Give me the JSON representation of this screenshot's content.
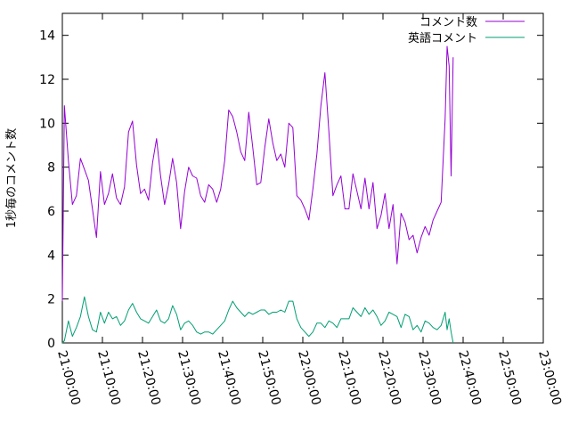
{
  "chart_data": {
    "type": "line",
    "title": "",
    "xlabel": "",
    "ylabel": "1秒毎のコメント数",
    "xlim": [
      "21:00:00",
      "23:00:00"
    ],
    "ylim": [
      0,
      15
    ],
    "y_ticks": [
      "0",
      "2",
      "4",
      "6",
      "8",
      "10",
      "12",
      "14"
    ],
    "x_ticks": [
      "21:00:00",
      "21:10:00",
      "21:20:00",
      "21:30:00",
      "21:40:00",
      "21:50:00",
      "22:00:00",
      "22:10:00",
      "22:20:00",
      "22:30:00",
      "22:40:00",
      "22:50:00",
      "23:00:00"
    ],
    "grid": false,
    "legend_position": "top-right",
    "series": [
      {
        "name": "コメント数",
        "color": "#9400d3",
        "points": [
          [
            "21:00:00",
            1.9
          ],
          [
            "21:00:30",
            10.8
          ],
          [
            "21:01:30",
            8.3
          ],
          [
            "21:02:30",
            6.3
          ],
          [
            "21:03:30",
            6.7
          ],
          [
            "21:04:30",
            8.4
          ],
          [
            "21:05:30",
            7.9
          ],
          [
            "21:06:30",
            7.4
          ],
          [
            "21:07:30",
            6.1
          ],
          [
            "21:08:30",
            4.8
          ],
          [
            "21:09:30",
            7.8
          ],
          [
            "21:10:30",
            6.3
          ],
          [
            "21:11:30",
            6.8
          ],
          [
            "21:12:30",
            7.7
          ],
          [
            "21:13:30",
            6.6
          ],
          [
            "21:14:30",
            6.3
          ],
          [
            "21:15:30",
            7.1
          ],
          [
            "21:16:30",
            9.6
          ],
          [
            "21:17:30",
            10.1
          ],
          [
            "21:18:30",
            8.1
          ],
          [
            "21:19:30",
            6.8
          ],
          [
            "21:20:30",
            7.0
          ],
          [
            "21:21:30",
            6.5
          ],
          [
            "21:22:30",
            8.2
          ],
          [
            "21:23:30",
            9.3
          ],
          [
            "21:24:30",
            7.6
          ],
          [
            "21:25:30",
            6.3
          ],
          [
            "21:26:30",
            7.2
          ],
          [
            "21:27:30",
            8.4
          ],
          [
            "21:28:30",
            7.3
          ],
          [
            "21:29:30",
            5.2
          ],
          [
            "21:30:30",
            6.9
          ],
          [
            "21:31:30",
            8.0
          ],
          [
            "21:32:30",
            7.6
          ],
          [
            "21:33:30",
            7.5
          ],
          [
            "21:34:30",
            6.7
          ],
          [
            "21:35:30",
            6.4
          ],
          [
            "21:36:30",
            7.2
          ],
          [
            "21:37:30",
            7.0
          ],
          [
            "21:38:30",
            6.4
          ],
          [
            "21:39:30",
            7.0
          ],
          [
            "21:40:30",
            8.3
          ],
          [
            "21:41:30",
            10.6
          ],
          [
            "21:42:30",
            10.3
          ],
          [
            "21:43:30",
            9.6
          ],
          [
            "21:44:30",
            8.7
          ],
          [
            "21:45:30",
            8.3
          ],
          [
            "21:46:30",
            10.5
          ],
          [
            "21:47:30",
            8.9
          ],
          [
            "21:48:30",
            7.2
          ],
          [
            "21:49:30",
            7.3
          ],
          [
            "21:50:30",
            8.9
          ],
          [
            "21:51:30",
            10.2
          ],
          [
            "21:52:30",
            9.1
          ],
          [
            "21:53:30",
            8.3
          ],
          [
            "21:54:30",
            8.6
          ],
          [
            "21:55:30",
            8.0
          ],
          [
            "21:56:30",
            10.0
          ],
          [
            "21:57:30",
            9.8
          ],
          [
            "21:58:30",
            6.7
          ],
          [
            "21:59:30",
            6.5
          ],
          [
            "22:00:30",
            6.1
          ],
          [
            "22:01:30",
            5.6
          ],
          [
            "22:02:30",
            7.0
          ],
          [
            "22:03:30",
            8.6
          ],
          [
            "22:04:30",
            10.8
          ],
          [
            "22:05:30",
            12.3
          ],
          [
            "22:06:30",
            9.6
          ],
          [
            "22:07:30",
            6.7
          ],
          [
            "22:08:30",
            7.2
          ],
          [
            "22:09:30",
            7.6
          ],
          [
            "22:10:30",
            6.1
          ],
          [
            "22:11:30",
            6.1
          ],
          [
            "22:12:30",
            7.7
          ],
          [
            "22:13:30",
            6.9
          ],
          [
            "22:14:30",
            6.1
          ],
          [
            "22:15:30",
            7.5
          ],
          [
            "22:16:30",
            6.1
          ],
          [
            "22:17:30",
            7.3
          ],
          [
            "22:18:30",
            5.2
          ],
          [
            "22:19:30",
            5.8
          ],
          [
            "22:20:30",
            6.8
          ],
          [
            "22:21:30",
            5.2
          ],
          [
            "22:22:30",
            6.3
          ],
          [
            "22:23:30",
            3.6
          ],
          [
            "22:24:30",
            5.9
          ],
          [
            "22:25:30",
            5.5
          ],
          [
            "22:26:30",
            4.7
          ],
          [
            "22:27:30",
            4.9
          ],
          [
            "22:28:30",
            4.1
          ],
          [
            "22:29:30",
            4.8
          ],
          [
            "22:30:30",
            5.3
          ],
          [
            "22:31:30",
            4.9
          ],
          [
            "22:32:30",
            5.6
          ],
          [
            "22:33:30",
            6.0
          ],
          [
            "22:34:30",
            6.4
          ],
          [
            "22:35:30",
            10.2
          ],
          [
            "22:36:00",
            13.5
          ],
          [
            "22:36:30",
            12.6
          ],
          [
            "22:37:00",
            7.6
          ],
          [
            "22:37:30",
            13.0
          ]
        ]
      },
      {
        "name": "英語コメント",
        "color": "#009e73",
        "points": [
          [
            "21:00:00",
            0.0
          ],
          [
            "21:00:30",
            0.1
          ],
          [
            "21:01:30",
            1.0
          ],
          [
            "21:02:30",
            0.3
          ],
          [
            "21:03:30",
            0.7
          ],
          [
            "21:04:30",
            1.2
          ],
          [
            "21:05:30",
            2.1
          ],
          [
            "21:06:30",
            1.2
          ],
          [
            "21:07:30",
            0.6
          ],
          [
            "21:08:30",
            0.5
          ],
          [
            "21:09:30",
            1.4
          ],
          [
            "21:10:30",
            0.9
          ],
          [
            "21:11:30",
            1.4
          ],
          [
            "21:12:30",
            1.1
          ],
          [
            "21:13:30",
            1.2
          ],
          [
            "21:14:30",
            0.8
          ],
          [
            "21:15:30",
            1.0
          ],
          [
            "21:16:30",
            1.5
          ],
          [
            "21:17:30",
            1.8
          ],
          [
            "21:18:30",
            1.4
          ],
          [
            "21:19:30",
            1.1
          ],
          [
            "21:20:30",
            1.0
          ],
          [
            "21:21:30",
            0.9
          ],
          [
            "21:22:30",
            1.2
          ],
          [
            "21:23:30",
            1.5
          ],
          [
            "21:24:30",
            1.0
          ],
          [
            "21:25:30",
            0.9
          ],
          [
            "21:26:30",
            1.1
          ],
          [
            "21:27:30",
            1.7
          ],
          [
            "21:28:30",
            1.3
          ],
          [
            "21:29:30",
            0.6
          ],
          [
            "21:30:30",
            0.9
          ],
          [
            "21:31:30",
            1.0
          ],
          [
            "21:32:30",
            0.8
          ],
          [
            "21:33:30",
            0.5
          ],
          [
            "21:34:30",
            0.4
          ],
          [
            "21:35:30",
            0.5
          ],
          [
            "21:36:30",
            0.5
          ],
          [
            "21:37:30",
            0.4
          ],
          [
            "21:38:30",
            0.6
          ],
          [
            "21:39:30",
            0.8
          ],
          [
            "21:40:30",
            1.0
          ],
          [
            "21:41:30",
            1.5
          ],
          [
            "21:42:30",
            1.9
          ],
          [
            "21:43:30",
            1.6
          ],
          [
            "21:44:30",
            1.4
          ],
          [
            "21:45:30",
            1.2
          ],
          [
            "21:46:30",
            1.4
          ],
          [
            "21:47:30",
            1.3
          ],
          [
            "21:48:30",
            1.4
          ],
          [
            "21:49:30",
            1.5
          ],
          [
            "21:50:30",
            1.5
          ],
          [
            "21:51:30",
            1.3
          ],
          [
            "21:52:30",
            1.4
          ],
          [
            "21:53:30",
            1.4
          ],
          [
            "21:54:30",
            1.5
          ],
          [
            "21:55:30",
            1.4
          ],
          [
            "21:56:30",
            1.9
          ],
          [
            "21:57:30",
            1.9
          ],
          [
            "21:58:30",
            1.1
          ],
          [
            "21:59:30",
            0.7
          ],
          [
            "22:00:30",
            0.5
          ],
          [
            "22:01:30",
            0.3
          ],
          [
            "22:02:30",
            0.5
          ],
          [
            "22:03:30",
            0.9
          ],
          [
            "22:04:30",
            0.9
          ],
          [
            "22:05:30",
            0.7
          ],
          [
            "22:06:30",
            1.0
          ],
          [
            "22:07:30",
            0.9
          ],
          [
            "22:08:30",
            0.7
          ],
          [
            "22:09:30",
            1.1
          ],
          [
            "22:10:30",
            1.1
          ],
          [
            "22:11:30",
            1.1
          ],
          [
            "22:12:30",
            1.6
          ],
          [
            "22:13:30",
            1.4
          ],
          [
            "22:14:30",
            1.2
          ],
          [
            "22:15:30",
            1.6
          ],
          [
            "22:16:30",
            1.3
          ],
          [
            "22:17:30",
            1.5
          ],
          [
            "22:18:30",
            1.2
          ],
          [
            "22:19:30",
            0.8
          ],
          [
            "22:20:30",
            1.0
          ],
          [
            "22:21:30",
            1.4
          ],
          [
            "22:22:30",
            1.3
          ],
          [
            "22:23:30",
            1.2
          ],
          [
            "22:24:30",
            0.7
          ],
          [
            "22:25:30",
            1.3
          ],
          [
            "22:26:30",
            1.2
          ],
          [
            "22:27:30",
            0.6
          ],
          [
            "22:28:30",
            0.8
          ],
          [
            "22:29:30",
            0.5
          ],
          [
            "22:30:30",
            1.0
          ],
          [
            "22:31:30",
            0.9
          ],
          [
            "22:32:30",
            0.7
          ],
          [
            "22:33:30",
            0.6
          ],
          [
            "22:34:30",
            0.8
          ],
          [
            "22:35:30",
            1.4
          ],
          [
            "22:36:00",
            0.6
          ],
          [
            "22:36:30",
            1.1
          ],
          [
            "22:37:00",
            0.5
          ],
          [
            "22:37:30",
            0.0
          ]
        ]
      }
    ]
  }
}
